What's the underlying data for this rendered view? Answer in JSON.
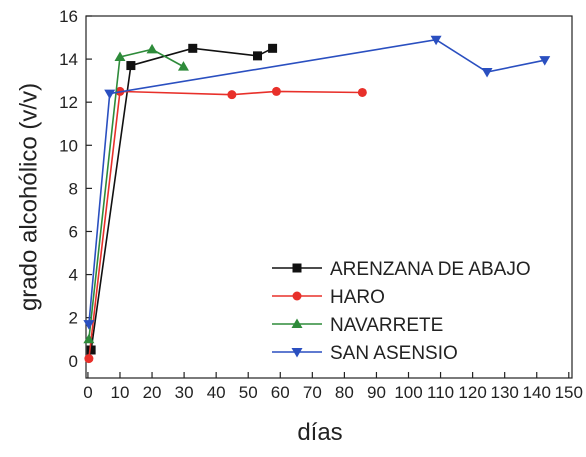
{
  "chart_data": {
    "type": "line",
    "x_label": "días",
    "y_label": "grado alcohólico (v/v)",
    "xlim": [
      -0.6,
      151
    ],
    "ylim": [
      -0.8,
      16
    ],
    "xticks": [
      0,
      10,
      20,
      30,
      40,
      50,
      60,
      70,
      80,
      90,
      100,
      110,
      120,
      130,
      140,
      150
    ],
    "yticks": [
      0,
      2,
      4,
      6,
      8,
      10,
      12,
      14,
      16
    ],
    "legend": "lower-right",
    "series": [
      {
        "name": "ARENZANA DE ABAJO",
        "color": "#111111",
        "marker": "square",
        "x": [
          1,
          13.4,
          32.7,
          52.9,
          57.6
        ],
        "values": [
          0.5,
          13.7,
          14.5,
          14.15,
          14.5
        ]
      },
      {
        "name": "HARO",
        "color": "#e8302a",
        "marker": "circle",
        "x": [
          0.3,
          10,
          44.9,
          58.8,
          85.6
        ],
        "values": [
          0.1,
          12.5,
          12.35,
          12.5,
          12.45
        ]
      },
      {
        "name": "NAVARRETE",
        "color": "#2e8b3a",
        "marker": "triangle-up",
        "x": [
          0.3,
          10,
          20,
          29.8
        ],
        "values": [
          1,
          14.1,
          14.45,
          13.65
        ]
      },
      {
        "name": "SAN ASENSIO",
        "color": "#2a4fc0",
        "marker": "triangle-down",
        "x": [
          0.3,
          6.8,
          108.6,
          124.5,
          142.5
        ],
        "values": [
          1.7,
          12.4,
          14.9,
          13.4,
          13.95
        ]
      }
    ]
  }
}
